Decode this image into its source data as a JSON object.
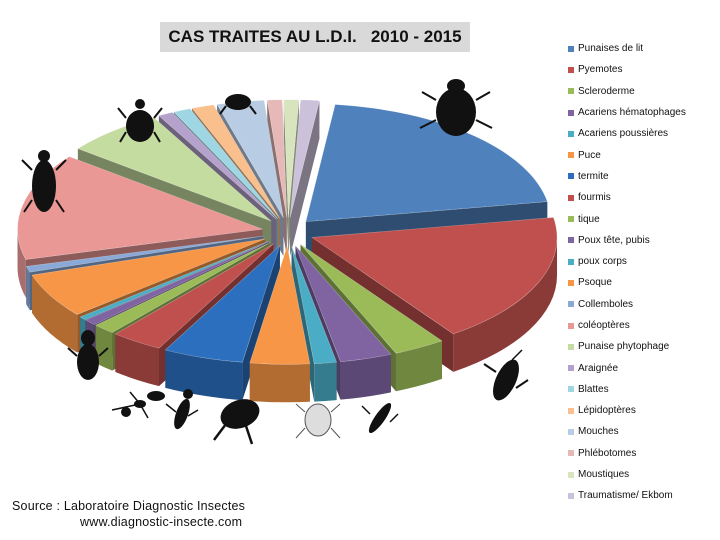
{
  "chart_data": {
    "type": "pie",
    "title": "CAS TRAITES AU L.D.I.   2010 - 2015",
    "legend_position": "right",
    "slices": [
      {
        "label": "Punaises de lit",
        "value": 25,
        "color": "#4f81bd"
      },
      {
        "label": "Pyemotes",
        "value": 22,
        "color": "#c0504d"
      },
      {
        "label": "Scleroderme",
        "value": 4.2,
        "color": "#9bbb59"
      },
      {
        "label": "Acariens hématophages",
        "value": 4.2,
        "color": "#8064a2"
      },
      {
        "label": "Acariens poussières",
        "value": 1.8,
        "color": "#4bacc6"
      },
      {
        "label": "Puce",
        "value": 4.8,
        "color": "#f79646"
      },
      {
        "label": "termite",
        "value": 6.5,
        "color": "#2c6fbf"
      },
      {
        "label": "fourmis",
        "value": 4.2,
        "color": "#c0504d"
      },
      {
        "label": "tique",
        "value": 1.8,
        "color": "#9bbb59"
      },
      {
        "label": "Poux tête, pubis",
        "value": 1.0,
        "color": "#8064a2"
      },
      {
        "label": "poux corps",
        "value": 0.6,
        "color": "#4bacc6"
      },
      {
        "label": "Psoque",
        "value": 7.5,
        "color": "#f79646"
      },
      {
        "label": "Collemboles",
        "value": 1.0,
        "color": "#8aa9d6"
      },
      {
        "label": "coléoptères",
        "value": 18,
        "color": "#e99896"
      },
      {
        "label": "Punaise phytophage",
        "value": 8,
        "color": "#c4dca0"
      },
      {
        "label": "Araignée",
        "value": 1.2,
        "color": "#b4a2cc"
      },
      {
        "label": "Blattes",
        "value": 1.4,
        "color": "#9ed6e4"
      },
      {
        "label": "Lépidoptères",
        "value": 1.8,
        "color": "#f9bf8c"
      },
      {
        "label": "Mouches",
        "value": 3.8,
        "color": "#b8cce4"
      },
      {
        "label": "Phlébotomes",
        "value": 1.2,
        "color": "#e6b9b8"
      },
      {
        "label": "Moustiques",
        "value": 1.2,
        "color": "#d7e4bd"
      },
      {
        "label": "Traumatisme/ Ekbom",
        "value": 1.5,
        "color": "#ccc1da"
      }
    ]
  },
  "source": {
    "line1": "Source : Laboratoire Diagnostic Insectes",
    "line2": "www.diagnostic-insecte.com"
  }
}
